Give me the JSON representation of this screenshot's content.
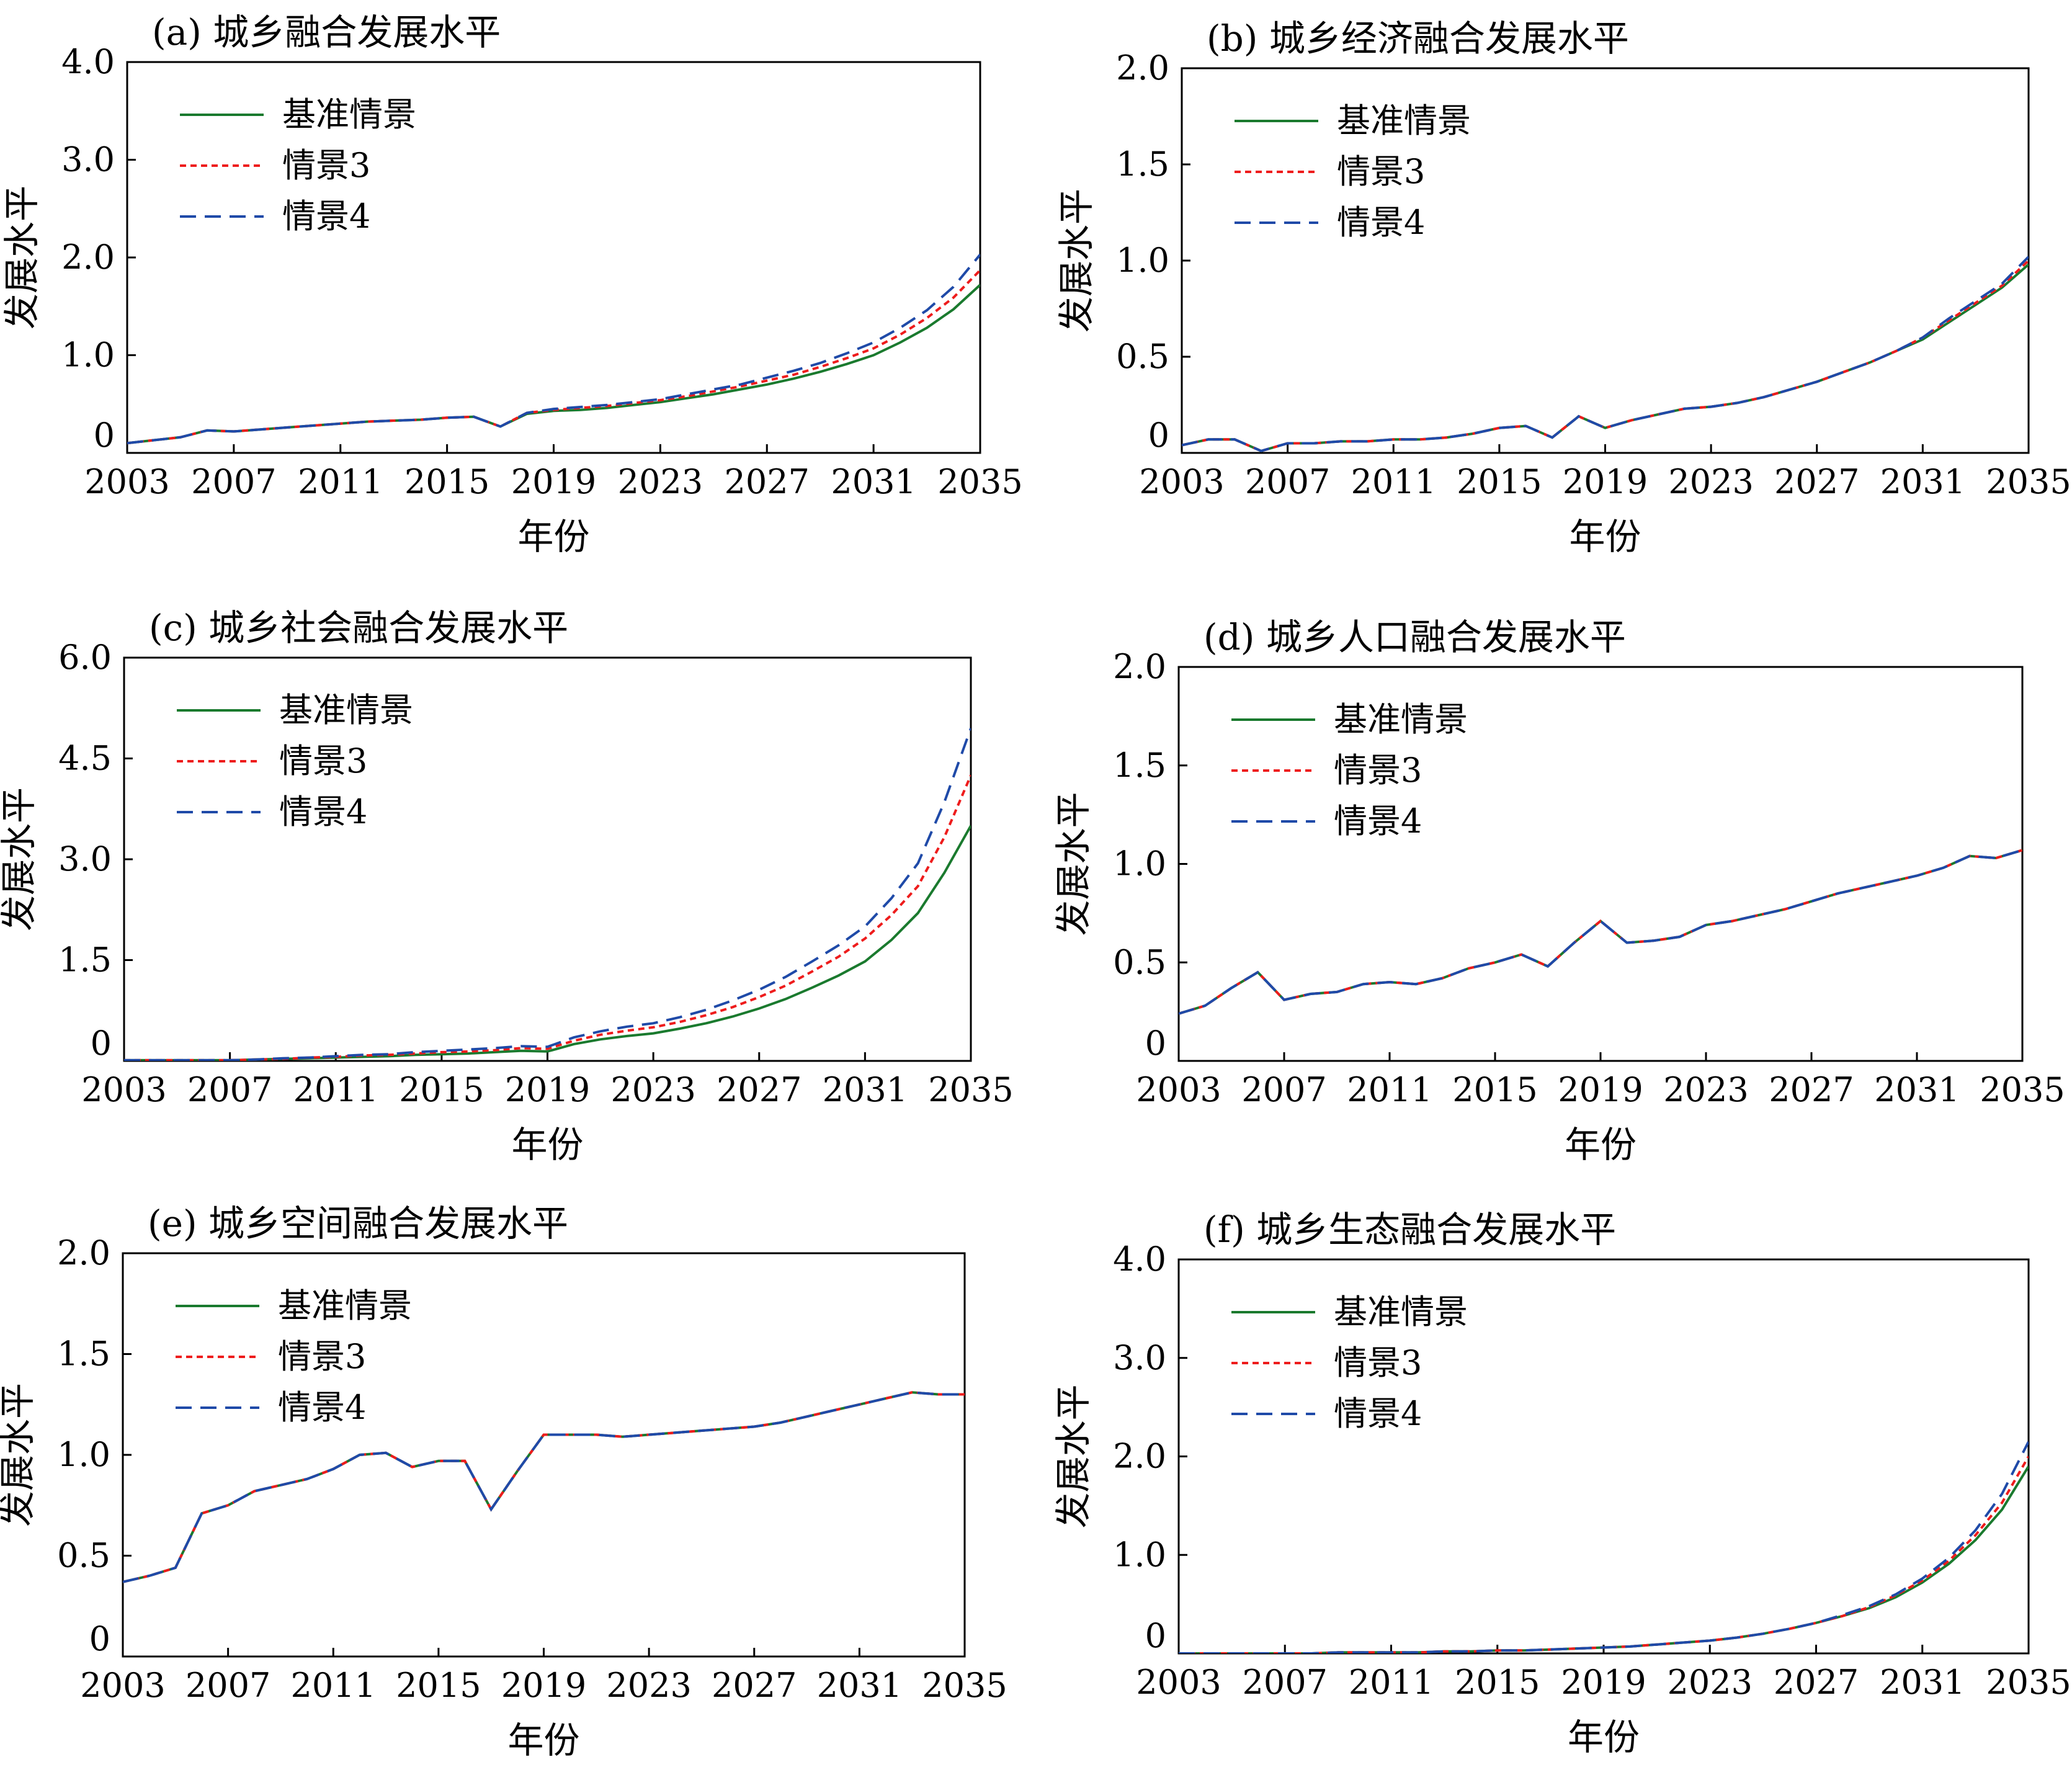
{
  "figure": {
    "x_axis_title": "年份",
    "y_axis_title": "发展水平"
  },
  "chart_data": [
    {
      "type": "line",
      "title": "(a) 城乡融合发展水平",
      "xlabel": "年份",
      "ylabel": "发展水平",
      "xlim": [
        2003,
        2035
      ],
      "ylim": [
        0,
        4.0
      ],
      "xticks": [
        "2003",
        "2007",
        "2011",
        "2015",
        "2019",
        "2023",
        "2027",
        "2031",
        "2035"
      ],
      "yticks": [
        "0",
        "1.0",
        "2.0",
        "3.0",
        "4.0"
      ],
      "legend_position": "top-left",
      "x": [
        2003,
        2004,
        2005,
        2006,
        2007,
        2008,
        2009,
        2010,
        2011,
        2012,
        2013,
        2014,
        2015,
        2016,
        2017,
        2018,
        2019,
        2020,
        2021,
        2022,
        2023,
        2024,
        2025,
        2026,
        2027,
        2028,
        2029,
        2030,
        2031,
        2032,
        2033,
        2034,
        2035
      ],
      "series": [
        {
          "name": "基准情景",
          "color": "#1a7a2e",
          "dash": "solid",
          "values": [
            0.1,
            0.13,
            0.16,
            0.23,
            0.22,
            0.24,
            0.26,
            0.28,
            0.3,
            0.32,
            0.33,
            0.34,
            0.36,
            0.37,
            0.27,
            0.4,
            0.43,
            0.44,
            0.46,
            0.49,
            0.52,
            0.56,
            0.6,
            0.65,
            0.7,
            0.76,
            0.83,
            0.91,
            1.0,
            1.13,
            1.28,
            1.47,
            1.72
          ]
        },
        {
          "name": "情景3",
          "color": "#ee1c1c",
          "dash": "short",
          "values": [
            0.1,
            0.13,
            0.16,
            0.23,
            0.22,
            0.24,
            0.26,
            0.28,
            0.3,
            0.32,
            0.33,
            0.34,
            0.36,
            0.37,
            0.27,
            0.41,
            0.44,
            0.46,
            0.48,
            0.51,
            0.54,
            0.58,
            0.63,
            0.68,
            0.74,
            0.8,
            0.88,
            0.97,
            1.07,
            1.21,
            1.38,
            1.59,
            1.87
          ]
        },
        {
          "name": "情景4",
          "color": "#1f4aa8",
          "dash": "long",
          "values": [
            0.1,
            0.13,
            0.16,
            0.23,
            0.22,
            0.24,
            0.26,
            0.28,
            0.3,
            0.32,
            0.33,
            0.34,
            0.36,
            0.37,
            0.27,
            0.41,
            0.45,
            0.47,
            0.49,
            0.52,
            0.55,
            0.6,
            0.65,
            0.7,
            0.77,
            0.84,
            0.92,
            1.02,
            1.13,
            1.28,
            1.46,
            1.7,
            2.03
          ]
        }
      ]
    },
    {
      "type": "line",
      "title": "(b) 城乡经济融合发展水平",
      "xlabel": "年份",
      "ylabel": "发展水平",
      "xlim": [
        2003,
        2035
      ],
      "ylim": [
        0,
        2.0
      ],
      "xticks": [
        "2003",
        "2007",
        "2011",
        "2015",
        "2019",
        "2023",
        "2027",
        "2031",
        "2035"
      ],
      "yticks": [
        "0",
        "0.5",
        "1.0",
        "1.5",
        "2.0"
      ],
      "legend_position": "top-left",
      "x": [
        2003,
        2004,
        2005,
        2006,
        2007,
        2008,
        2009,
        2010,
        2011,
        2012,
        2013,
        2014,
        2015,
        2016,
        2017,
        2018,
        2019,
        2020,
        2021,
        2022,
        2023,
        2024,
        2025,
        2026,
        2027,
        2028,
        2029,
        2030,
        2031,
        2032,
        2033,
        2034,
        2035
      ],
      "series": [
        {
          "name": "基准情景",
          "color": "#1a7a2e",
          "dash": "solid",
          "values": [
            0.04,
            0.07,
            0.07,
            0.01,
            0.05,
            0.05,
            0.06,
            0.06,
            0.07,
            0.07,
            0.08,
            0.1,
            0.13,
            0.14,
            0.08,
            0.19,
            0.13,
            0.17,
            0.2,
            0.23,
            0.24,
            0.26,
            0.29,
            0.33,
            0.37,
            0.42,
            0.47,
            0.53,
            0.59,
            0.68,
            0.77,
            0.86,
            0.98
          ]
        },
        {
          "name": "情景3",
          "color": "#ee1c1c",
          "dash": "short",
          "values": [
            0.04,
            0.07,
            0.07,
            0.01,
            0.05,
            0.05,
            0.06,
            0.06,
            0.07,
            0.07,
            0.08,
            0.1,
            0.13,
            0.14,
            0.08,
            0.19,
            0.13,
            0.17,
            0.2,
            0.23,
            0.24,
            0.26,
            0.29,
            0.33,
            0.37,
            0.42,
            0.47,
            0.53,
            0.6,
            0.69,
            0.78,
            0.87,
            1.0
          ]
        },
        {
          "name": "情景4",
          "color": "#1f4aa8",
          "dash": "long",
          "values": [
            0.04,
            0.07,
            0.07,
            0.01,
            0.05,
            0.05,
            0.06,
            0.06,
            0.07,
            0.07,
            0.08,
            0.1,
            0.13,
            0.14,
            0.08,
            0.19,
            0.13,
            0.17,
            0.2,
            0.23,
            0.24,
            0.26,
            0.29,
            0.33,
            0.37,
            0.42,
            0.47,
            0.53,
            0.6,
            0.7,
            0.79,
            0.88,
            1.02
          ]
        }
      ]
    },
    {
      "type": "line",
      "title": "(c) 城乡社会融合发展水平",
      "xlabel": "年份",
      "ylabel": "发展水平",
      "xlim": [
        2003,
        2035
      ],
      "ylim": [
        0,
        6.0
      ],
      "xticks": [
        "2003",
        "2007",
        "2011",
        "2015",
        "2019",
        "2023",
        "2027",
        "2031",
        "2035"
      ],
      "yticks": [
        "0",
        "1.5",
        "3.0",
        "4.5",
        "6.0"
      ],
      "legend_position": "top-left",
      "x": [
        2003,
        2004,
        2005,
        2006,
        2007,
        2008,
        2009,
        2010,
        2011,
        2012,
        2013,
        2014,
        2015,
        2016,
        2017,
        2018,
        2019,
        2020,
        2021,
        2022,
        2023,
        2024,
        2025,
        2026,
        2027,
        2028,
        2029,
        2030,
        2031,
        2032,
        2033,
        2034,
        2035
      ],
      "series": [
        {
          "name": "基准情景",
          "color": "#1a7a2e",
          "dash": "solid",
          "values": [
            0.01,
            0.01,
            0.01,
            0.01,
            0.01,
            0.02,
            0.03,
            0.04,
            0.05,
            0.06,
            0.07,
            0.09,
            0.1,
            0.11,
            0.13,
            0.15,
            0.14,
            0.25,
            0.32,
            0.37,
            0.41,
            0.48,
            0.56,
            0.66,
            0.78,
            0.92,
            1.09,
            1.27,
            1.48,
            1.8,
            2.2,
            2.8,
            3.5
          ]
        },
        {
          "name": "情景3",
          "color": "#ee1c1c",
          "dash": "short",
          "values": [
            0.01,
            0.01,
            0.01,
            0.01,
            0.01,
            0.02,
            0.03,
            0.05,
            0.06,
            0.08,
            0.09,
            0.11,
            0.13,
            0.14,
            0.16,
            0.19,
            0.18,
            0.3,
            0.39,
            0.45,
            0.5,
            0.58,
            0.68,
            0.8,
            0.95,
            1.12,
            1.33,
            1.55,
            1.82,
            2.17,
            2.6,
            3.33,
            4.25
          ]
        },
        {
          "name": "情景4",
          "color": "#1f4aa8",
          "dash": "long",
          "values": [
            0.01,
            0.01,
            0.01,
            0.01,
            0.01,
            0.02,
            0.04,
            0.05,
            0.07,
            0.09,
            0.1,
            0.13,
            0.15,
            0.17,
            0.19,
            0.22,
            0.21,
            0.35,
            0.44,
            0.51,
            0.56,
            0.65,
            0.76,
            0.9,
            1.06,
            1.25,
            1.48,
            1.72,
            2.0,
            2.42,
            2.94,
            3.85,
            4.95
          ]
        }
      ]
    },
    {
      "type": "line",
      "title": "(d) 城乡人口融合发展水平",
      "xlabel": "年份",
      "ylabel": "发展水平",
      "xlim": [
        2003,
        2035
      ],
      "ylim": [
        0,
        2.0
      ],
      "xticks": [
        "2003",
        "2007",
        "2011",
        "2015",
        "2019",
        "2023",
        "2027",
        "2031",
        "2035"
      ],
      "yticks": [
        "0",
        "0.5",
        "1.0",
        "1.5",
        "2.0"
      ],
      "legend_position": "top-left",
      "x": [
        2003,
        2004,
        2005,
        2006,
        2007,
        2008,
        2009,
        2010,
        2011,
        2012,
        2013,
        2014,
        2015,
        2016,
        2017,
        2018,
        2019,
        2020,
        2021,
        2022,
        2023,
        2024,
        2025,
        2026,
        2027,
        2028,
        2029,
        2030,
        2031,
        2032,
        2033,
        2034,
        2035
      ],
      "series": [
        {
          "name": "基准情景",
          "color": "#1a7a2e",
          "dash": "solid",
          "values": [
            0.24,
            0.28,
            0.37,
            0.45,
            0.31,
            0.34,
            0.35,
            0.39,
            0.4,
            0.39,
            0.42,
            0.47,
            0.5,
            0.54,
            0.48,
            0.6,
            0.71,
            0.6,
            0.61,
            0.63,
            0.69,
            0.71,
            0.74,
            0.77,
            0.81,
            0.85,
            0.88,
            0.91,
            0.94,
            0.98,
            1.04,
            1.03,
            1.07
          ]
        },
        {
          "name": "情景3",
          "color": "#ee1c1c",
          "dash": "short",
          "values": [
            0.24,
            0.28,
            0.37,
            0.45,
            0.31,
            0.34,
            0.35,
            0.39,
            0.4,
            0.39,
            0.42,
            0.47,
            0.5,
            0.54,
            0.48,
            0.6,
            0.71,
            0.6,
            0.61,
            0.63,
            0.69,
            0.71,
            0.74,
            0.77,
            0.81,
            0.85,
            0.88,
            0.91,
            0.94,
            0.98,
            1.04,
            1.03,
            1.07
          ]
        },
        {
          "name": "情景4",
          "color": "#1f4aa8",
          "dash": "long",
          "values": [
            0.24,
            0.28,
            0.37,
            0.45,
            0.31,
            0.34,
            0.35,
            0.39,
            0.4,
            0.39,
            0.42,
            0.47,
            0.5,
            0.54,
            0.48,
            0.6,
            0.71,
            0.6,
            0.61,
            0.63,
            0.69,
            0.71,
            0.74,
            0.77,
            0.81,
            0.85,
            0.88,
            0.91,
            0.94,
            0.98,
            1.04,
            1.03,
            1.07
          ]
        }
      ]
    },
    {
      "type": "line",
      "title": "(e) 城乡空间融合发展水平",
      "xlabel": "年份",
      "ylabel": "发展水平",
      "xlim": [
        2003,
        2035
      ],
      "ylim": [
        0,
        2.0
      ],
      "xticks": [
        "2003",
        "2007",
        "2011",
        "2015",
        "2019",
        "2023",
        "2027",
        "2031",
        "2035"
      ],
      "yticks": [
        "0",
        "0.5",
        "1.0",
        "1.5",
        "2.0"
      ],
      "legend_position": "top-left",
      "x": [
        2003,
        2004,
        2005,
        2006,
        2007,
        2008,
        2009,
        2010,
        2011,
        2012,
        2013,
        2014,
        2015,
        2016,
        2017,
        2018,
        2019,
        2020,
        2021,
        2022,
        2023,
        2024,
        2025,
        2026,
        2027,
        2028,
        2029,
        2030,
        2031,
        2032,
        2033,
        2034,
        2035
      ],
      "series": [
        {
          "name": "基准情景",
          "color": "#1a7a2e",
          "dash": "solid",
          "values": [
            0.37,
            0.4,
            0.44,
            0.71,
            0.75,
            0.82,
            0.85,
            0.88,
            0.93,
            1.0,
            1.01,
            0.94,
            0.97,
            0.97,
            0.73,
            0.92,
            1.1,
            1.1,
            1.1,
            1.09,
            1.1,
            1.11,
            1.12,
            1.13,
            1.14,
            1.16,
            1.19,
            1.22,
            1.25,
            1.28,
            1.31,
            1.3,
            1.3
          ]
        },
        {
          "name": "情景3",
          "color": "#ee1c1c",
          "dash": "short",
          "values": [
            0.37,
            0.4,
            0.44,
            0.71,
            0.75,
            0.82,
            0.85,
            0.88,
            0.93,
            1.0,
            1.01,
            0.94,
            0.97,
            0.97,
            0.73,
            0.92,
            1.1,
            1.1,
            1.1,
            1.09,
            1.1,
            1.11,
            1.12,
            1.13,
            1.14,
            1.16,
            1.19,
            1.22,
            1.25,
            1.28,
            1.31,
            1.3,
            1.3
          ]
        },
        {
          "name": "情景4",
          "color": "#1f4aa8",
          "dash": "long",
          "values": [
            0.37,
            0.4,
            0.44,
            0.71,
            0.75,
            0.82,
            0.85,
            0.88,
            0.93,
            1.0,
            1.01,
            0.94,
            0.97,
            0.97,
            0.73,
            0.92,
            1.1,
            1.1,
            1.1,
            1.09,
            1.1,
            1.11,
            1.12,
            1.13,
            1.14,
            1.16,
            1.19,
            1.22,
            1.25,
            1.28,
            1.31,
            1.3,
            1.3
          ]
        }
      ]
    },
    {
      "type": "line",
      "title": "(f) 城乡生态融合发展水平",
      "xlabel": "年份",
      "ylabel": "发展水平",
      "xlim": [
        2003,
        2035
      ],
      "ylim": [
        0,
        4.0
      ],
      "xticks": [
        "2003",
        "2007",
        "2011",
        "2015",
        "2019",
        "2023",
        "2027",
        "2031",
        "2035"
      ],
      "yticks": [
        "0",
        "1.0",
        "2.0",
        "3.0",
        "4.0"
      ],
      "legend_position": "top-left",
      "x": [
        2003,
        2004,
        2005,
        2006,
        2007,
        2008,
        2009,
        2010,
        2011,
        2012,
        2013,
        2014,
        2015,
        2016,
        2017,
        2018,
        2019,
        2020,
        2021,
        2022,
        2023,
        2024,
        2025,
        2026,
        2027,
        2028,
        2029,
        2030,
        2031,
        2032,
        2033,
        2034,
        2035
      ],
      "series": [
        {
          "name": "基准情景",
          "color": "#1a7a2e",
          "dash": "solid",
          "values": [
            0,
            0,
            0,
            0,
            0,
            0,
            0.01,
            0.01,
            0.01,
            0.01,
            0.02,
            0.02,
            0.03,
            0.03,
            0.04,
            0.05,
            0.06,
            0.07,
            0.09,
            0.11,
            0.13,
            0.16,
            0.2,
            0.25,
            0.31,
            0.38,
            0.46,
            0.57,
            0.72,
            0.91,
            1.15,
            1.46,
            1.9
          ]
        },
        {
          "name": "情景3",
          "color": "#ee1c1c",
          "dash": "short",
          "values": [
            0,
            0,
            0,
            0,
            0,
            0,
            0.01,
            0.01,
            0.01,
            0.01,
            0.02,
            0.02,
            0.03,
            0.03,
            0.04,
            0.05,
            0.06,
            0.07,
            0.09,
            0.11,
            0.13,
            0.16,
            0.2,
            0.25,
            0.31,
            0.38,
            0.47,
            0.59,
            0.74,
            0.94,
            1.2,
            1.53,
            2.0
          ]
        },
        {
          "name": "情景4",
          "color": "#1f4aa8",
          "dash": "long",
          "values": [
            0,
            0,
            0,
            0,
            0,
            0,
            0.01,
            0.01,
            0.01,
            0.01,
            0.02,
            0.02,
            0.03,
            0.03,
            0.04,
            0.05,
            0.06,
            0.07,
            0.09,
            0.11,
            0.13,
            0.16,
            0.2,
            0.25,
            0.31,
            0.39,
            0.48,
            0.6,
            0.76,
            0.97,
            1.25,
            1.62,
            2.15
          ]
        }
      ]
    }
  ]
}
